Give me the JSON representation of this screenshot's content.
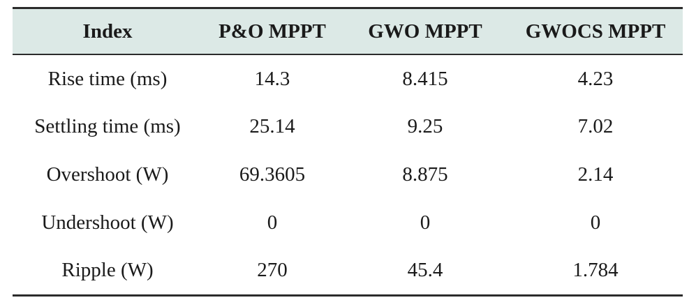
{
  "table": {
    "headers": [
      "Index",
      "P&O MPPT",
      "GWO MPPT",
      "GWOCS MPPT"
    ],
    "rows": [
      [
        "Rise time (ms)",
        "14.3",
        "8.415",
        "4.23"
      ],
      [
        "Settling time (ms)",
        "25.14",
        "9.25",
        "7.02"
      ],
      [
        "Overshoot (W)",
        "69.3605",
        "8.875",
        "2.14"
      ],
      [
        "Undershoot (W)",
        "0",
        "0",
        "0"
      ],
      [
        "Ripple (W)",
        "270",
        "45.4",
        "1.784"
      ]
    ]
  }
}
